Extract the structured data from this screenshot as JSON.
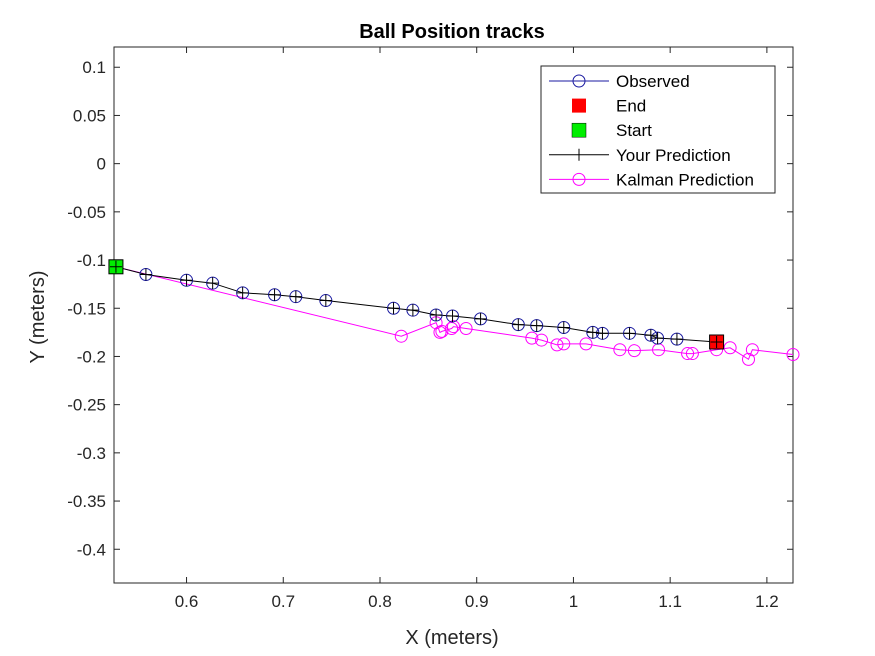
{
  "chart_data": {
    "type": "line",
    "title": "Ball Position tracks",
    "xlabel": "X (meters)",
    "ylabel": "Y (meters)",
    "xlim": [
      0.525,
      1.227
    ],
    "ylim": [
      -0.435,
      0.121
    ],
    "xticks": [
      0.6,
      0.7,
      0.8,
      0.9,
      1,
      1.1,
      1.2
    ],
    "xtick_labels": [
      "0.6",
      "0.7",
      "0.8",
      "0.9",
      "1",
      "1.1",
      "1.2"
    ],
    "yticks": [
      0.1,
      0.05,
      0,
      -0.05,
      -0.1,
      -0.15,
      -0.2,
      -0.25,
      -0.3,
      -0.35,
      -0.4
    ],
    "ytick_labels": [
      "0.1",
      "0.05",
      "0",
      "-0.05",
      "-0.1",
      "-0.15",
      "-0.2",
      "-0.25",
      "-0.3",
      "-0.35",
      "-0.4"
    ],
    "grid": false,
    "legend_position": "top-right",
    "legend": [
      {
        "label": "Observed",
        "key": "observed"
      },
      {
        "label": "End",
        "key": "end"
      },
      {
        "label": "Start",
        "key": "start"
      },
      {
        "label": "Your Prediction",
        "key": "prediction"
      },
      {
        "label": "Kalman Prediction",
        "key": "kalman"
      }
    ],
    "colors": {
      "observed": "#1a1aa0",
      "prediction": "#000000",
      "kalman": "#ff00ff",
      "end": "#ff0000",
      "start": "#00ee00"
    },
    "series": [
      {
        "name": "Observed",
        "x": [
          0.527,
          0.558,
          0.6,
          0.627,
          0.658,
          0.691,
          0.713,
          0.744,
          0.814,
          0.834,
          0.858,
          0.875,
          0.904,
          0.943,
          0.962,
          0.99,
          1.02,
          1.03,
          1.058,
          1.08,
          1.087,
          1.107,
          1.148
        ],
        "y": [
          -0.107,
          -0.115,
          -0.121,
          -0.124,
          -0.134,
          -0.136,
          -0.138,
          -0.142,
          -0.15,
          -0.152,
          -0.157,
          -0.158,
          -0.161,
          -0.167,
          -0.168,
          -0.17,
          -0.175,
          -0.176,
          -0.176,
          -0.178,
          -0.181,
          -0.182,
          -0.185
        ]
      },
      {
        "name": "Your Prediction",
        "x": [
          0.527,
          0.558,
          0.6,
          0.627,
          0.658,
          0.691,
          0.713,
          0.744,
          0.814,
          0.834,
          0.858,
          0.875,
          0.904,
          0.943,
          0.962,
          0.99,
          1.02,
          1.03,
          1.058,
          1.08,
          1.087,
          1.107,
          1.148
        ],
        "y": [
          -0.107,
          -0.115,
          -0.121,
          -0.124,
          -0.134,
          -0.136,
          -0.138,
          -0.142,
          -0.15,
          -0.152,
          -0.157,
          -0.158,
          -0.161,
          -0.167,
          -0.168,
          -0.17,
          -0.175,
          -0.176,
          -0.176,
          -0.178,
          -0.181,
          -0.182,
          -0.185
        ]
      },
      {
        "name": "Kalman Prediction",
        "x": [
          0.527,
          0.822,
          0.858,
          0.862,
          0.864,
          0.874,
          0.876,
          0.889,
          0.957,
          0.967,
          0.983,
          0.99,
          1.013,
          1.048,
          1.063,
          1.088,
          1.118,
          1.123,
          1.148,
          1.162,
          1.181,
          1.185,
          1.227
        ],
        "y": [
          -0.107,
          -0.179,
          -0.165,
          -0.175,
          -0.174,
          -0.171,
          -0.169,
          -0.171,
          -0.181,
          -0.183,
          -0.188,
          -0.187,
          -0.187,
          -0.193,
          -0.194,
          -0.193,
          -0.197,
          -0.197,
          -0.193,
          -0.191,
          -0.203,
          -0.193,
          -0.198
        ]
      }
    ],
    "start_point": {
      "x": 0.527,
      "y": -0.107
    },
    "end_point": {
      "x": 1.148,
      "y": -0.185
    }
  }
}
